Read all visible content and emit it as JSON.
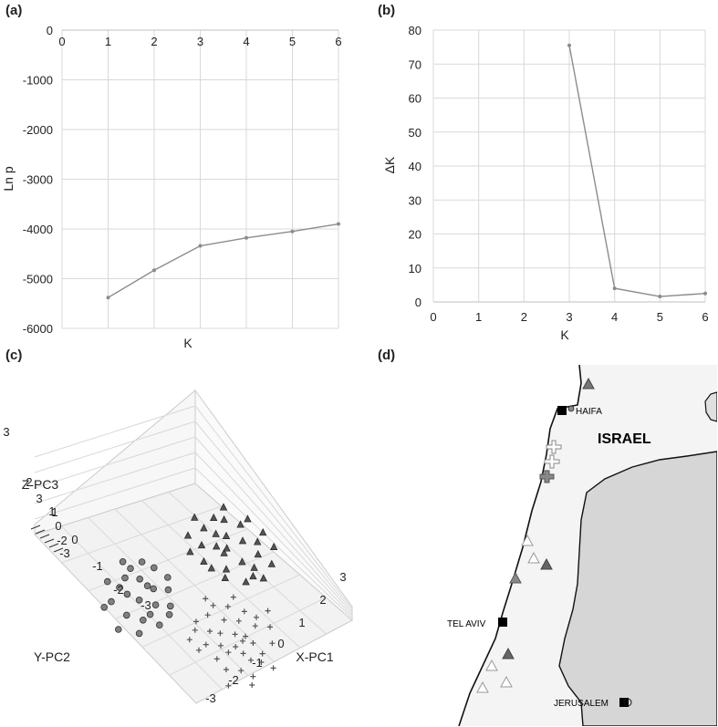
{
  "panels": {
    "a": "(a)",
    "b": "(b)",
    "c": "(c)",
    "d": "(d)"
  },
  "chart_data": [
    {
      "id": "a",
      "type": "line",
      "xlabel": "K",
      "ylabel": "Ln p",
      "x_ticks": [
        0,
        1,
        2,
        3,
        4,
        5,
        6
      ],
      "y_ticks": [
        0,
        -1000,
        -2000,
        -3000,
        -4000,
        -5000,
        -6000
      ],
      "xlim": [
        0,
        6
      ],
      "ylim": [
        -6000,
        0
      ],
      "x": [
        1,
        2,
        3,
        4,
        5,
        6
      ],
      "values": [
        -5380,
        -4830,
        -4340,
        -4180,
        -4050,
        -3900
      ],
      "grid": true,
      "color": "#8c8c8c"
    },
    {
      "id": "b",
      "type": "line",
      "xlabel": "K",
      "ylabel": "ΔK",
      "x_ticks": [
        0,
        1,
        2,
        3,
        4,
        5,
        6
      ],
      "y_ticks": [
        0,
        10,
        20,
        30,
        40,
        50,
        60,
        70,
        80
      ],
      "xlim": [
        0,
        6
      ],
      "ylim": [
        0,
        80
      ],
      "x": [
        3,
        4,
        5,
        6
      ],
      "values": [
        75.5,
        4.0,
        1.6,
        2.5
      ],
      "grid": true,
      "color": "#8c8c8c"
    },
    {
      "id": "c",
      "type": "scatter",
      "xlabel": "X-PC1",
      "ylabel": "Y-PC2",
      "zlabel": "Z-PC3",
      "x_ticks": [
        "3",
        "2",
        "1",
        "0",
        "-1",
        "-2",
        "-3"
      ],
      "y_ticks": [
        "3",
        "2",
        "1",
        "0",
        "-1",
        "-2",
        "-3"
      ],
      "z_ticks": [
        "3",
        "2",
        "1",
        "0",
        "-1",
        "-2",
        "-3"
      ],
      "series": [
        {
          "marker": "circle",
          "color": "#808080",
          "points": [
            [
              -1.8,
              0.2
            ],
            [
              -1.5,
              0.5
            ],
            [
              -1.2,
              0.1
            ],
            [
              -1.0,
              0.6
            ],
            [
              -0.8,
              0.3
            ],
            [
              -1.6,
              -0.2
            ],
            [
              -1.3,
              -0.4
            ],
            [
              -0.9,
              -0.1
            ],
            [
              -0.6,
              0.8
            ],
            [
              -1.1,
              0.9
            ],
            [
              -1.9,
              -0.5
            ],
            [
              -0.7,
              -0.4
            ],
            [
              -1.4,
              0.3
            ],
            [
              -0.5,
              0.2
            ],
            [
              -1.7,
              0.7
            ],
            [
              -1.0,
              -0.6
            ],
            [
              -0.4,
              0.5
            ],
            [
              -1.2,
              1.1
            ],
            [
              -0.8,
              1.0
            ],
            [
              -2.0,
              0.1
            ],
            [
              -1.5,
              -0.7
            ],
            [
              -0.6,
              -0.2
            ],
            [
              -1.3,
              0.7
            ],
            [
              -0.9,
              0.4
            ],
            [
              -1.1,
              -0.3
            ]
          ]
        },
        {
          "marker": "triangle",
          "color": "#555555",
          "points": [
            [
              0.8,
              1.5
            ],
            [
              1.2,
              1.2
            ],
            [
              1.0,
              0.8
            ],
            [
              1.5,
              1.0
            ],
            [
              0.6,
              1.1
            ],
            [
              1.3,
              0.5
            ],
            [
              1.8,
              0.9
            ],
            [
              0.9,
              0.4
            ],
            [
              1.6,
              1.4
            ],
            [
              1.1,
              1.7
            ],
            [
              0.5,
              0.7
            ],
            [
              1.9,
              0.3
            ],
            [
              1.4,
              0.1
            ],
            [
              0.7,
              1.8
            ],
            [
              1.7,
              0.6
            ],
            [
              1.2,
              0.0
            ],
            [
              2.0,
              1.1
            ],
            [
              0.4,
              1.4
            ],
            [
              1.0,
              1.3
            ],
            [
              1.5,
              0.3
            ],
            [
              0.8,
              0.2
            ],
            [
              1.3,
              1.6
            ],
            [
              1.8,
              1.5
            ],
            [
              0.6,
              0.5
            ],
            [
              1.1,
              0.9
            ],
            [
              1.6,
              0.0
            ],
            [
              2.1,
              0.7
            ],
            [
              0.3,
              1.0
            ],
            [
              1.4,
              1.9
            ],
            [
              0.9,
              1.0
            ]
          ]
        },
        {
          "marker": "cross",
          "color": "#555555",
          "points": [
            [
              0.2,
              -1.6
            ],
            [
              0.5,
              -1.2
            ],
            [
              0.0,
              -1.0
            ],
            [
              0.8,
              -1.5
            ],
            [
              0.4,
              -0.8
            ],
            [
              -0.2,
              -1.3
            ],
            [
              0.6,
              -1.9
            ],
            [
              1.0,
              -1.1
            ],
            [
              0.3,
              -2.1
            ],
            [
              -0.1,
              -1.7
            ],
            [
              0.9,
              -0.7
            ],
            [
              0.7,
              -1.3
            ],
            [
              0.1,
              -0.6
            ],
            [
              1.2,
              -1.6
            ],
            [
              0.5,
              -2.3
            ],
            [
              -0.3,
              -0.9
            ],
            [
              0.4,
              -1.5
            ],
            [
              0.8,
              -2.0
            ],
            [
              0.2,
              -1.1
            ],
            [
              1.1,
              -0.9
            ],
            [
              0.6,
              -0.5
            ],
            [
              -0.4,
              -1.4
            ],
            [
              0.0,
              -2.0
            ],
            [
              0.9,
              -1.8
            ],
            [
              0.3,
              -0.4
            ],
            [
              -0.2,
              -0.7
            ],
            [
              0.7,
              -0.9
            ],
            [
              1.3,
              -1.2
            ],
            [
              0.5,
              -1.7
            ],
            [
              0.1,
              -1.4
            ],
            [
              -0.5,
              -1.1
            ],
            [
              0.8,
              -0.3
            ],
            [
              0.4,
              -2.5
            ],
            [
              1.0,
              -2.2
            ],
            [
              0.2,
              -0.2
            ],
            [
              0.6,
              -1.4
            ],
            [
              -0.1,
              -2.4
            ],
            [
              1.4,
              -0.8
            ]
          ]
        }
      ]
    }
  ],
  "map": {
    "title": "ISRAEL",
    "cities": [
      {
        "name": "HAIFA"
      },
      {
        "name": "TEL AVIV"
      },
      {
        "name": "JERUSALEM"
      }
    ]
  }
}
